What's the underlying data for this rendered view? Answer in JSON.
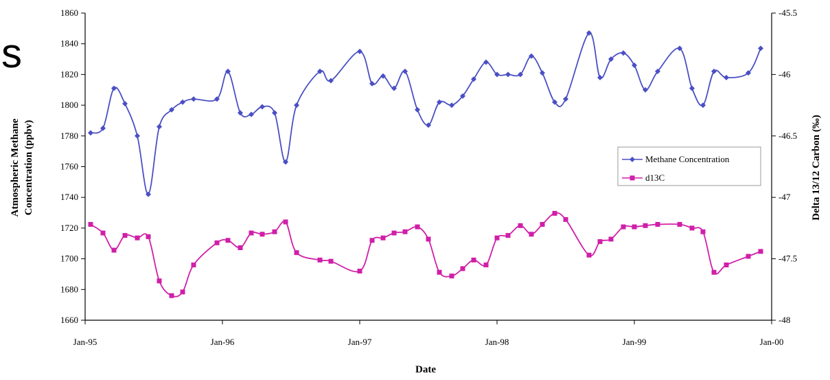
{
  "page": {
    "fragment_text": "s"
  },
  "chart_data": {
    "type": "line",
    "title": "",
    "xlabel": "Date",
    "ylabel": "Atmospheric Methane Concentration (ppbv)",
    "ylabel_lines": [
      "Atmospheric Methane",
      "Concentration (ppbv)"
    ],
    "y2label": "Delta 13/12 Carbon (‰)",
    "x_ticks": [
      "Jan-95",
      "Jan-96",
      "Jan-97",
      "Jan-98",
      "Jan-99",
      "Jan-00"
    ],
    "x_tick_values": [
      1995.0,
      1996.0,
      1997.0,
      1998.0,
      1999.0,
      2000.0
    ],
    "xlim": [
      1995.0,
      2000.0
    ],
    "ylim": [
      1660,
      1860
    ],
    "y_ticks": [
      1660,
      1680,
      1700,
      1720,
      1740,
      1760,
      1780,
      1800,
      1820,
      1840,
      1860
    ],
    "y2lim": [
      -48,
      -45.5
    ],
    "y2_ticks": [
      "-45.5",
      "-46",
      "-46.5",
      "-47",
      "-47.5",
      "-48"
    ],
    "y2_tick_values": [
      -45.5,
      -46,
      -46.5,
      -47,
      -47.5,
      -48
    ],
    "grid": false,
    "legend_position": "right",
    "series": [
      {
        "name": "Methane Concentration",
        "axis": "left",
        "marker": "diamond",
        "color": "#4a4fc4",
        "points": [
          [
            1995.04,
            1782
          ],
          [
            1995.13,
            1785
          ],
          [
            1995.21,
            1811
          ],
          [
            1995.29,
            1801
          ],
          [
            1995.38,
            1780
          ],
          [
            1995.46,
            1742
          ],
          [
            1995.54,
            1786
          ],
          [
            1995.63,
            1797
          ],
          [
            1995.71,
            1802
          ],
          [
            1995.79,
            1804
          ],
          [
            1995.96,
            1804
          ],
          [
            1996.04,
            1822
          ],
          [
            1996.13,
            1795
          ],
          [
            1996.21,
            1794
          ],
          [
            1996.29,
            1799
          ],
          [
            1996.38,
            1795
          ],
          [
            1996.46,
            1763
          ],
          [
            1996.54,
            1800
          ],
          [
            1996.71,
            1822
          ],
          [
            1996.79,
            1816
          ],
          [
            1997.0,
            1835
          ],
          [
            1997.09,
            1814
          ],
          [
            1997.17,
            1819
          ],
          [
            1997.25,
            1811
          ],
          [
            1997.33,
            1822
          ],
          [
            1997.42,
            1797
          ],
          [
            1997.5,
            1787
          ],
          [
            1997.58,
            1802
          ],
          [
            1997.67,
            1800
          ],
          [
            1997.75,
            1806
          ],
          [
            1997.83,
            1817
          ],
          [
            1997.92,
            1828
          ],
          [
            1998.0,
            1820
          ],
          [
            1998.08,
            1820
          ],
          [
            1998.17,
            1820
          ],
          [
            1998.25,
            1832
          ],
          [
            1998.33,
            1821
          ],
          [
            1998.42,
            1802
          ],
          [
            1998.5,
            1804
          ],
          [
            1998.67,
            1847
          ],
          [
            1998.75,
            1818
          ],
          [
            1998.83,
            1830
          ],
          [
            1998.92,
            1834
          ],
          [
            1999.0,
            1826
          ],
          [
            1999.08,
            1810
          ],
          [
            1999.17,
            1822
          ],
          [
            1999.33,
            1837
          ],
          [
            1999.42,
            1811
          ],
          [
            1999.5,
            1800
          ],
          [
            1999.58,
            1822
          ],
          [
            1999.67,
            1818
          ],
          [
            1999.83,
            1821
          ],
          [
            1999.92,
            1837
          ]
        ]
      },
      {
        "name": "d13C",
        "axis": "right",
        "marker": "square",
        "color": "#d01fa8",
        "points": [
          [
            1995.04,
            -47.22
          ],
          [
            1995.13,
            -47.29
          ],
          [
            1995.21,
            -47.43
          ],
          [
            1995.29,
            -47.31
          ],
          [
            1995.38,
            -47.33
          ],
          [
            1995.46,
            -47.32
          ],
          [
            1995.54,
            -47.68
          ],
          [
            1995.63,
            -47.8
          ],
          [
            1995.71,
            -47.77
          ],
          [
            1995.79,
            -47.55
          ],
          [
            1995.96,
            -47.37
          ],
          [
            1996.04,
            -47.35
          ],
          [
            1996.13,
            -47.41
          ],
          [
            1996.21,
            -47.29
          ],
          [
            1996.29,
            -47.3
          ],
          [
            1996.38,
            -47.28
          ],
          [
            1996.46,
            -47.2
          ],
          [
            1996.54,
            -47.45
          ],
          [
            1996.71,
            -47.51
          ],
          [
            1996.79,
            -47.52
          ],
          [
            1997.0,
            -47.6
          ],
          [
            1997.09,
            -47.35
          ],
          [
            1997.17,
            -47.33
          ],
          [
            1997.25,
            -47.29
          ],
          [
            1997.33,
            -47.28
          ],
          [
            1997.42,
            -47.24
          ],
          [
            1997.5,
            -47.34
          ],
          [
            1997.58,
            -47.61
          ],
          [
            1997.67,
            -47.64
          ],
          [
            1997.75,
            -47.58
          ],
          [
            1997.83,
            -47.51
          ],
          [
            1997.92,
            -47.55
          ],
          [
            1998.0,
            -47.33
          ],
          [
            1998.08,
            -47.31
          ],
          [
            1998.17,
            -47.23
          ],
          [
            1998.25,
            -47.3
          ],
          [
            1998.33,
            -47.22
          ],
          [
            1998.42,
            -47.13
          ],
          [
            1998.5,
            -47.18
          ],
          [
            1998.67,
            -47.47
          ],
          [
            1998.75,
            -47.36
          ],
          [
            1998.83,
            -47.34
          ],
          [
            1998.92,
            -47.24
          ],
          [
            1999.0,
            -47.24
          ],
          [
            1999.08,
            -47.23
          ],
          [
            1999.17,
            -47.22
          ],
          [
            1999.33,
            -47.22
          ],
          [
            1999.42,
            -47.25
          ],
          [
            1999.5,
            -47.28
          ],
          [
            1999.58,
            -47.61
          ],
          [
            1999.67,
            -47.55
          ],
          [
            1999.83,
            -47.48
          ],
          [
            1999.92,
            -47.44
          ]
        ]
      }
    ]
  }
}
